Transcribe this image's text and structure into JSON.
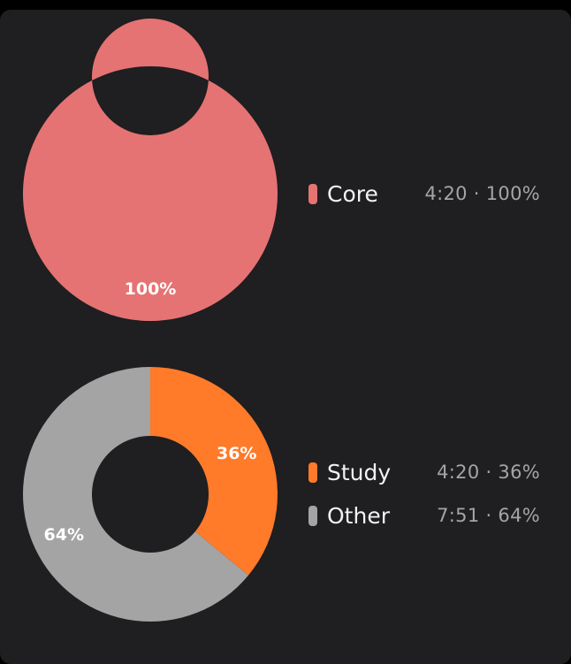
{
  "chart_data": [
    {
      "type": "pie",
      "style": "donut",
      "legend_position": "right",
      "categories": [
        "Core"
      ],
      "values": [
        100
      ],
      "slice_labels": [
        "100%"
      ],
      "colors": [
        "#e57373"
      ],
      "legend": [
        {
          "name": "Core",
          "stat": "4:20 · 100%",
          "color": "#e57373"
        }
      ]
    },
    {
      "type": "pie",
      "style": "donut",
      "legend_position": "right",
      "categories": [
        "Study",
        "Other"
      ],
      "values": [
        36,
        64
      ],
      "slice_labels": [
        "36%",
        "64%"
      ],
      "colors": [
        "#ff7a29",
        "#a4a4a4"
      ],
      "legend": [
        {
          "name": "Study",
          "stat": "4:20 · 36%",
          "color": "#ff7a29"
        },
        {
          "name": "Other",
          "stat": "7:51 · 64%",
          "color": "#a4a4a4"
        }
      ]
    }
  ],
  "colors": {
    "background": "#000000",
    "card": "#1f1e20",
    "hole": "#1f1e20"
  }
}
